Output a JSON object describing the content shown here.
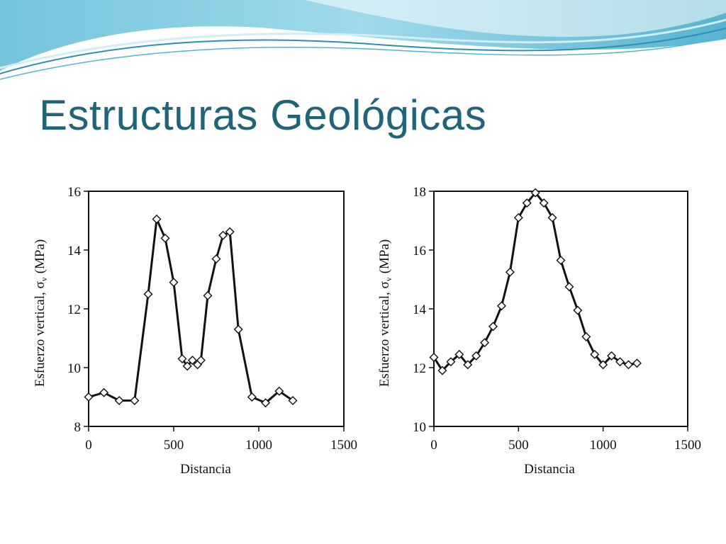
{
  "slide": {
    "title": "Estructuras Geológicas",
    "accent_color": "#1f6478",
    "wave_colors": [
      "#8fd3e8",
      "#4fb6d2",
      "#2e8fb3",
      "#cfeef6"
    ]
  },
  "chart_data": [
    {
      "type": "line",
      "marker": "diamond",
      "title": "",
      "xlabel": "Distancia",
      "ylabel": "Esfuerzo vertical, σ",
      "ylabel_subscript": "v",
      "ylabel_unit": "(MPa)",
      "xlim": [
        0,
        1500
      ],
      "ylim": [
        8,
        16
      ],
      "xticks": [
        0,
        500,
        1000,
        1500
      ],
      "yticks": [
        8,
        10,
        12,
        14,
        16
      ],
      "grid": false,
      "series": [
        {
          "x": [
            0,
            90,
            180,
            270,
            350,
            400,
            450,
            500,
            550,
            580,
            610,
            640,
            660,
            700,
            750,
            790,
            830,
            880,
            960,
            1040,
            1120,
            1200
          ],
          "y": [
            9.0,
            9.15,
            8.88,
            8.88,
            12.5,
            15.05,
            14.4,
            12.9,
            10.3,
            10.05,
            10.25,
            10.1,
            10.25,
            12.45,
            13.7,
            14.5,
            14.62,
            11.3,
            9.0,
            8.8,
            9.2,
            8.88
          ]
        }
      ]
    },
    {
      "type": "line",
      "marker": "diamond",
      "title": "",
      "xlabel": "Distancia",
      "ylabel": "Esfuerzo vertical, σ",
      "ylabel_subscript": "v",
      "ylabel_unit": "(MPa)",
      "xlim": [
        0,
        1500
      ],
      "ylim": [
        10,
        18
      ],
      "xticks": [
        0,
        500,
        1000,
        1500
      ],
      "yticks": [
        10,
        12,
        14,
        16,
        18
      ],
      "grid": false,
      "series": [
        {
          "x": [
            0,
            50,
            100,
            150,
            200,
            250,
            300,
            350,
            400,
            450,
            500,
            550,
            600,
            650,
            700,
            750,
            800,
            850,
            900,
            950,
            1000,
            1050,
            1100,
            1150,
            1200
          ],
          "y": [
            12.35,
            11.9,
            12.2,
            12.45,
            12.1,
            12.4,
            12.85,
            13.4,
            14.1,
            15.25,
            17.1,
            17.6,
            17.95,
            17.6,
            17.1,
            15.65,
            14.75,
            13.95,
            13.05,
            12.45,
            12.1,
            12.4,
            12.2,
            12.1,
            12.15
          ]
        }
      ]
    }
  ]
}
